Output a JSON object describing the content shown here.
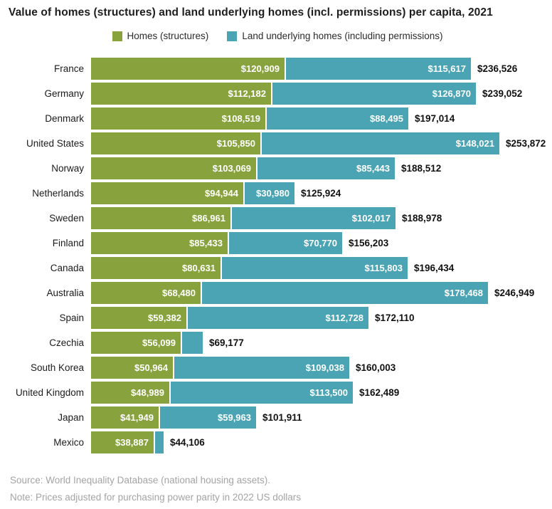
{
  "title": "Value of homes (structures) and land underlying homes (incl. permissions) per capita, 2021",
  "legend": [
    {
      "label": "Homes (structures)",
      "color": "#88A33D"
    },
    {
      "label": "Land underlying homes (including permissions)",
      "color": "#4BA4B4"
    }
  ],
  "footer": {
    "source": "Source: World Inequality Database (national housing assets).",
    "note": "Note: Prices adjusted for purchasing power parity in 2022 US dollars"
  },
  "chart_data": {
    "type": "bar",
    "stacked": true,
    "orientation": "horizontal",
    "title": "Value of homes (structures) and land underlying homes (incl. permissions) per capita, 2021",
    "legend_position": "top",
    "grid": false,
    "xlim": [
      0,
      253872
    ],
    "categories": [
      "France",
      "Germany",
      "Denmark",
      "United States",
      "Norway",
      "Netherlands",
      "Sweden",
      "Finland",
      "Canada",
      "Australia",
      "Spain",
      "Czechia",
      "South Korea",
      "United Kingdom",
      "Japan",
      "Mexico"
    ],
    "series": [
      {
        "name": "Homes (structures)",
        "color": "#88A33D",
        "values": [
          120909,
          112182,
          108519,
          105850,
          103069,
          94944,
          86961,
          85433,
          80631,
          68480,
          59382,
          56099,
          50964,
          48989,
          41949,
          38887
        ]
      },
      {
        "name": "Land underlying homes (including permissions)",
        "color": "#4BA4B4",
        "values": [
          115617,
          126870,
          88495,
          148021,
          85443,
          30980,
          102017,
          70770,
          115803,
          178468,
          112728,
          13078,
          109038,
          113500,
          59963,
          5219
        ]
      }
    ],
    "totals": [
      236526,
      239052,
      197014,
      253872,
      188512,
      125924,
      188978,
      156203,
      196434,
      246949,
      172110,
      69177,
      160003,
      162489,
      101911,
      44106
    ],
    "segment_labels": [
      [
        "$120,909",
        "$115,617"
      ],
      [
        "$112,182",
        "$126,870"
      ],
      [
        "$108,519",
        "$88,495"
      ],
      [
        "$105,850",
        "$148,021"
      ],
      [
        "$103,069",
        "$85,443"
      ],
      [
        "$94,944",
        "$30,980"
      ],
      [
        "$86,961",
        "$102,017"
      ],
      [
        "$85,433",
        "$70,770"
      ],
      [
        "$80,631",
        "$115,803"
      ],
      [
        "$68,480",
        "$178,468"
      ],
      [
        "$59,382",
        "$112,728"
      ],
      [
        "$56,099",
        ""
      ],
      [
        "$50,964",
        "$109,038"
      ],
      [
        "$48,989",
        "$113,500"
      ],
      [
        "$41,949",
        "$59,963"
      ],
      [
        "$38,887",
        ""
      ]
    ],
    "total_labels": [
      "$236,526",
      "$239,052",
      "$197,014",
      "$253,872",
      "$188,512",
      "$125,924",
      "$188,978",
      "$156,203",
      "$196,434",
      "$246,949",
      "$172,110",
      "$69,177",
      "$160,003",
      "$162,489",
      "$101,911",
      "$44,106"
    ]
  }
}
